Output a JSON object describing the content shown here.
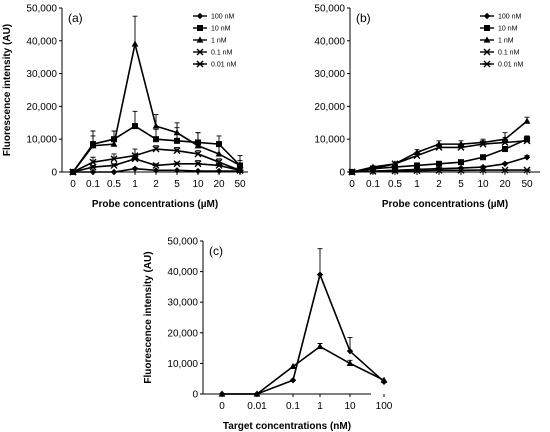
{
  "chart_data": [
    {
      "type": "line",
      "label": "(a)",
      "categories": [
        "0",
        "0.1",
        "0.5",
        "1",
        "2",
        "5",
        "10",
        "20",
        "50"
      ],
      "xlabel": "Probe concentrations (µM)",
      "ylabel": "Fluorescence intensity (AU)",
      "ylim": [
        0,
        50000
      ],
      "yticks": [
        0,
        10000,
        20000,
        30000,
        40000,
        50000
      ],
      "ytick_labels": [
        "0",
        "10,000",
        "20,000",
        "30,000",
        "40,000",
        "50,000"
      ],
      "legend_position": "top-right",
      "series": [
        {
          "name": "100 nM",
          "marker": "diamond",
          "values": [
            0,
            0,
            0,
            1000,
            500,
            500,
            300,
            300,
            300
          ],
          "error": [
            0,
            0,
            0,
            300,
            0,
            0,
            0,
            0,
            0
          ]
        },
        {
          "name": "10 nM",
          "marker": "square",
          "values": [
            0,
            8500,
            10000,
            14000,
            10000,
            9500,
            9000,
            8500,
            2000
          ],
          "error": [
            0,
            4000,
            2500,
            4500,
            3000,
            4000,
            3000,
            2500,
            1500
          ]
        },
        {
          "name": "1 nM",
          "marker": "triangle",
          "values": [
            0,
            8000,
            8500,
            39000,
            14000,
            12000,
            8000,
            5500,
            2000
          ],
          "error": [
            0,
            3000,
            2000,
            8500,
            3500,
            3000,
            4000,
            3000,
            3000
          ]
        },
        {
          "name": "0.1 nM",
          "marker": "x",
          "values": [
            0,
            3000,
            4000,
            5000,
            7000,
            6500,
            5500,
            3000,
            500
          ],
          "error": [
            0,
            1500,
            1500,
            2000,
            1000,
            1000,
            1000,
            1000,
            500
          ]
        },
        {
          "name": "0.01 nM",
          "marker": "star",
          "values": [
            0,
            1500,
            2000,
            4000,
            2000,
            2500,
            2500,
            2000,
            500
          ],
          "error": [
            0,
            500,
            500,
            1500,
            500,
            500,
            1000,
            500,
            300
          ]
        }
      ]
    },
    {
      "type": "line",
      "label": "(b)",
      "categories": [
        "0",
        "0.1",
        "0.5",
        "1",
        "2",
        "5",
        "10",
        "20",
        "50"
      ],
      "xlabel": "Probe concentrations (µM)",
      "ylabel": "",
      "ylim": [
        0,
        50000
      ],
      "yticks": [
        0,
        10000,
        20000,
        30000,
        40000,
        50000
      ],
      "ytick_labels": [
        "0",
        "10,000",
        "20,000",
        "30,000",
        "40,000",
        "50,000"
      ],
      "legend_position": "top-right",
      "series": [
        {
          "name": "100 nM",
          "marker": "diamond",
          "values": [
            0,
            300,
            500,
            800,
            1000,
            1200,
            1500,
            2500,
            4500
          ],
          "error": [
            0,
            100,
            100,
            200,
            200,
            200,
            300,
            300,
            500
          ]
        },
        {
          "name": "10 nM",
          "marker": "square",
          "values": [
            0,
            1000,
            1500,
            2000,
            2500,
            3000,
            4500,
            7000,
            10000
          ],
          "error": [
            0,
            200,
            300,
            300,
            300,
            500,
            500,
            800,
            1000
          ]
        },
        {
          "name": "1 nM",
          "marker": "triangle",
          "values": [
            0,
            1500,
            2500,
            6000,
            8500,
            8500,
            9000,
            10000,
            15500
          ],
          "error": [
            0,
            300,
            500,
            800,
            1000,
            1000,
            1000,
            2000,
            1200
          ]
        },
        {
          "name": "0.1 nM",
          "marker": "x",
          "values": [
            0,
            1000,
            2500,
            5000,
            7500,
            7500,
            8500,
            9000,
            9500
          ],
          "error": [
            0,
            300,
            500,
            800,
            1000,
            1000,
            1000,
            1500,
            1500
          ]
        },
        {
          "name": "0.01 nM",
          "marker": "star",
          "values": [
            0,
            200,
            300,
            400,
            500,
            500,
            600,
            600,
            600
          ],
          "error": [
            0,
            100,
            100,
            100,
            100,
            100,
            100,
            100,
            100
          ]
        }
      ]
    },
    {
      "type": "line",
      "label": "(c)",
      "categories": [
        "0",
        "0.01",
        "0.1",
        "1",
        "10",
        "100"
      ],
      "xlabel": "Target concentrations (nM)",
      "ylabel": "Fluorescence intensity (AU)",
      "ylim": [
        0,
        50000
      ],
      "yticks": [
        0,
        10000,
        20000,
        30000,
        40000,
        50000
      ],
      "ytick_labels": [
        "0",
        "10,000",
        "20,000",
        "30,000",
        "40,000",
        "50,000"
      ],
      "series": [
        {
          "name": "",
          "marker": "diamond",
          "values": [
            0,
            0,
            4500,
            39000,
            14000,
            4000
          ],
          "error": [
            0,
            0,
            0,
            8500,
            4500,
            0
          ]
        },
        {
          "name": "",
          "marker": "triangle",
          "values": [
            0,
            0,
            9000,
            15500,
            10000,
            4500
          ],
          "error": [
            0,
            0,
            0,
            1000,
            1000,
            0
          ]
        }
      ]
    }
  ]
}
